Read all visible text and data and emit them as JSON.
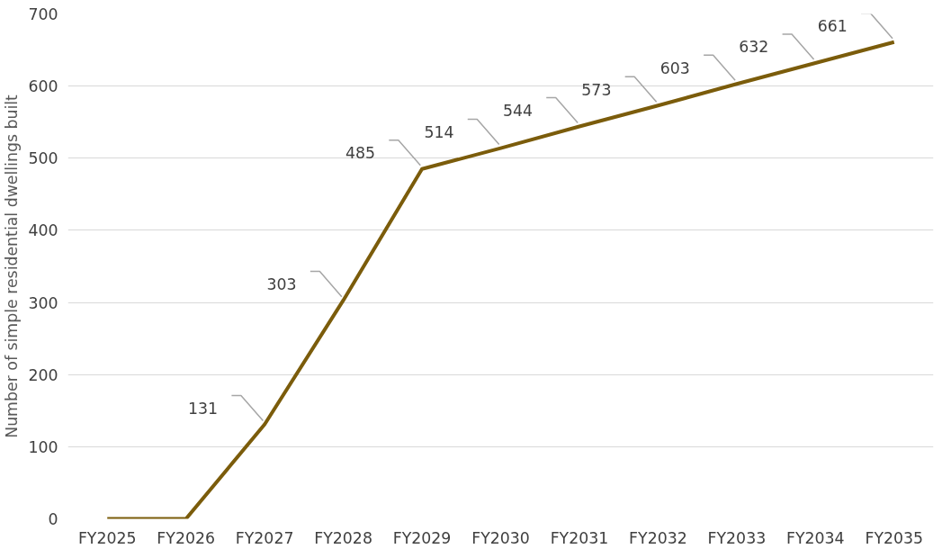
{
  "chart_data": {
    "type": "line",
    "ylabel": "Number of simple residential dwellings built",
    "categories": [
      "FY2025",
      "FY2026",
      "FY2027",
      "FY2028",
      "FY2029",
      "FY2030",
      "FY2031",
      "FY2032",
      "FY2033",
      "FY2034",
      "FY2035"
    ],
    "series": [
      {
        "color": "#7b5c0b",
        "values": [
          0,
          0,
          131,
          303,
          485,
          514,
          544,
          573,
          603,
          632,
          661
        ]
      }
    ],
    "value_labels": [
      null,
      null,
      "131",
      "303",
      "485",
      "514",
      "544",
      "573",
      "603",
      "632",
      "661"
    ],
    "ylim": [
      0,
      700
    ],
    "yticks": [
      0,
      100,
      200,
      300,
      400,
      500,
      600,
      700
    ],
    "grid": "y",
    "marker": "none",
    "line_style": "solid"
  }
}
